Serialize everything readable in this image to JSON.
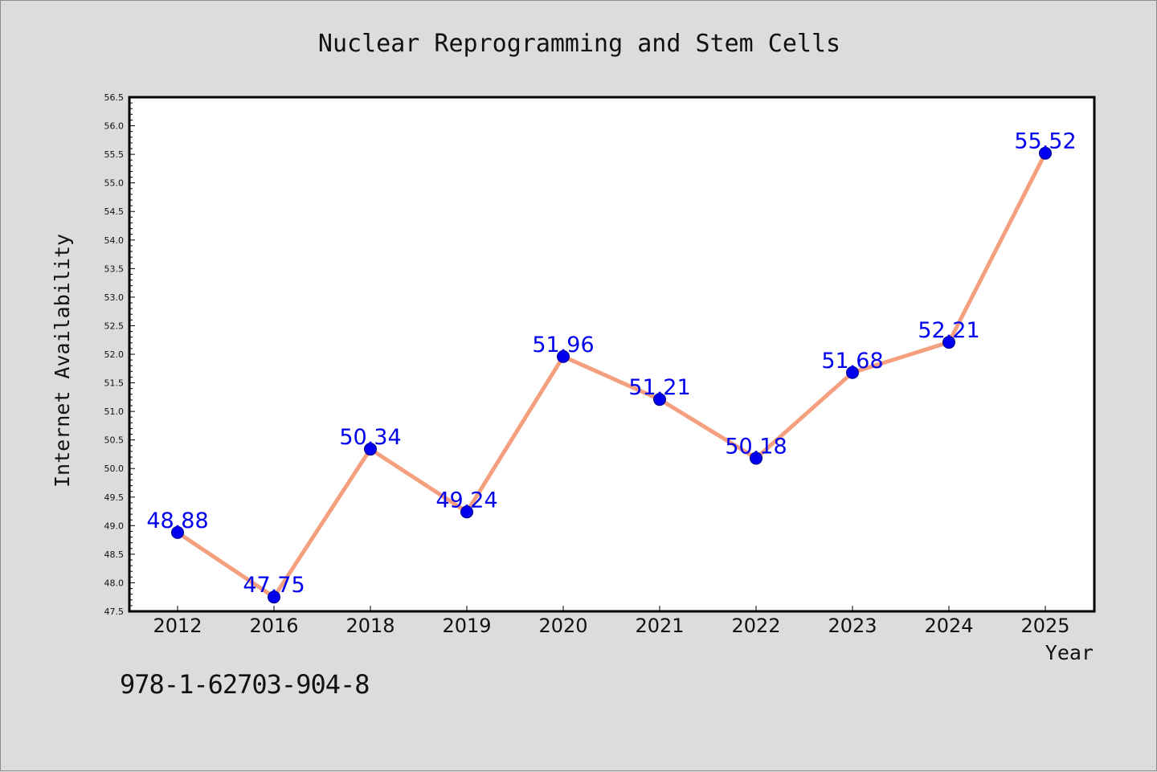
{
  "chart_data": {
    "type": "line",
    "title": "Nuclear Reprogramming and Stem Cells",
    "xlabel": "Year",
    "ylabel": "Internet Availability",
    "categories": [
      "2012",
      "2016",
      "2018",
      "2019",
      "2020",
      "2021",
      "2022",
      "2023",
      "2024",
      "2025"
    ],
    "series": [
      {
        "values": [
          48.88,
          47.75,
          50.34,
          49.24,
          51.96,
          51.21,
          50.18,
          51.68,
          52.21,
          55.52
        ]
      }
    ],
    "data_labels": [
      "48.88",
      "47.75",
      "50.34",
      "49.24",
      "51.96",
      "51.21",
      "50.18",
      "51.68",
      "52.21",
      "55.52"
    ],
    "ylim": [
      47.5,
      56.5
    ],
    "yticks": [
      "47.5",
      "48.0",
      "48.5",
      "49.0",
      "49.5",
      "50.0",
      "50.5",
      "51.0",
      "51.5",
      "52.0",
      "52.5",
      "53.0",
      "53.5",
      "54.0",
      "54.5",
      "55.0",
      "55.5",
      "56.0",
      "56.5"
    ],
    "grid": false,
    "line_color": "#f4a07f",
    "marker_color": "#0000ee",
    "label_color": "#0000ee"
  },
  "footer": {
    "isbn": "978-1-62703-904-8"
  }
}
